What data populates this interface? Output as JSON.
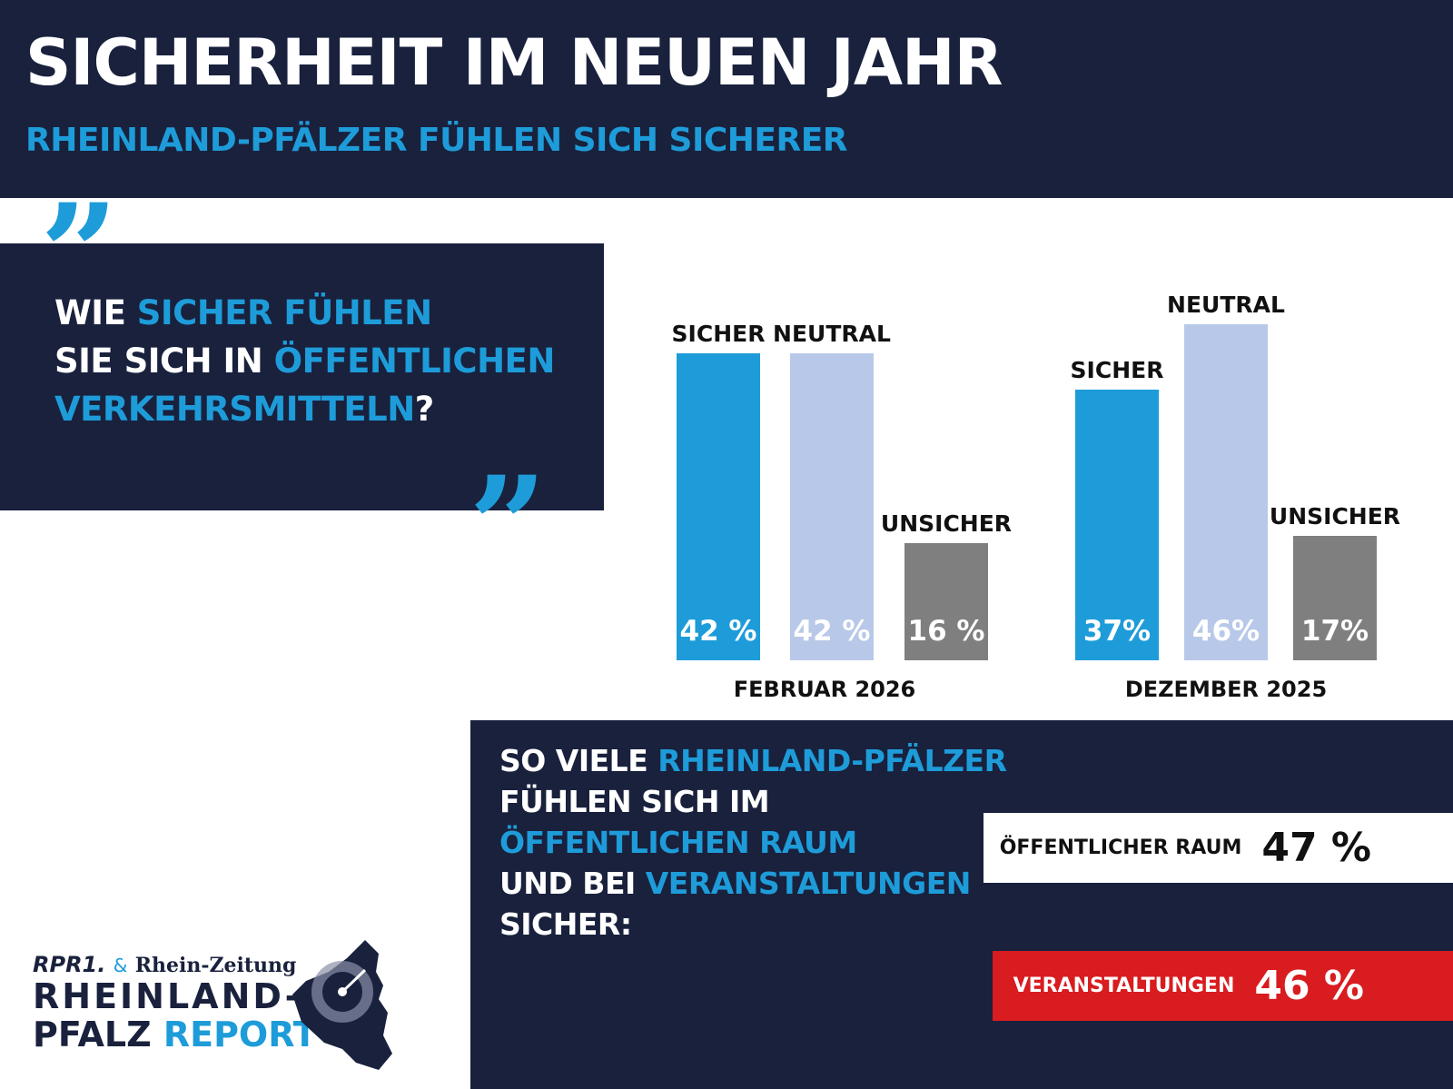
{
  "title": "SICHERHEIT IM NEUEN JAHR",
  "subtitle": "RHEINLAND-PFÄLZER FÜHLEN SICH SICHERER",
  "question": {
    "p1": "WIE ",
    "p2": "SICHER FÜHLEN",
    "p3": "SIE SICH IN ",
    "p4": "ÖFFENTLICHEN",
    "p5": "VERKEHRSMITTELN",
    "p6": "?"
  },
  "chart_data": {
    "type": "bar",
    "categories": [
      "SICHER",
      "NEUTRAL",
      "UNSICHER"
    ],
    "groups": [
      {
        "label": "FEBRUAR 2026",
        "values": [
          42,
          42,
          16
        ],
        "value_labels": [
          "42 %",
          "42 %",
          "16 %"
        ]
      },
      {
        "label": "DEZEMBER 2025",
        "values": [
          37,
          46,
          17
        ],
        "value_labels": [
          "37%",
          "46%",
          "17%"
        ]
      }
    ],
    "colors": [
      "#1e9cd9",
      "#b8c8e8",
      "#7f7f7f"
    ],
    "ylim": [
      0,
      46
    ]
  },
  "bottom": {
    "l1a": "SO VIELE ",
    "l1b": "RHEINLAND-PFÄLZER",
    "l2": "FÜHLEN SICH IM",
    "l3": "ÖFFENTLICHEN RAUM",
    "l4a": "UND BEI ",
    "l4b": "VERANSTALTUNGEN",
    "l5": "SICHER:"
  },
  "stats": [
    {
      "label": "ÖFFENTLICHER RAUM",
      "value": "47 %"
    },
    {
      "label": "VERANSTALTUNGEN",
      "value": "46 %"
    }
  ],
  "logo": {
    "rpr": "RPR1.",
    "amp": "&",
    "rz": "Rhein-Zeitung",
    "l1": "RHEINLAND-",
    "l2a": "PFALZ ",
    "l2b": "REPORT"
  },
  "colors": {
    "navy": "#19213d",
    "blue": "#1e9cd9",
    "red": "#d81c1f"
  }
}
